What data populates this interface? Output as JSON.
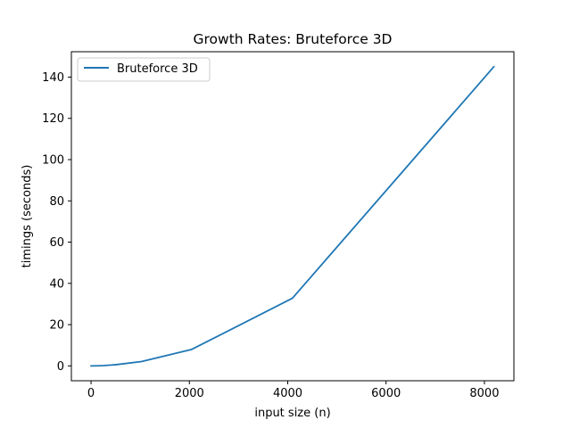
{
  "chart_data": {
    "type": "line",
    "title": "Growth Rates: Bruteforce 3D",
    "xlabel": "input size (n)",
    "ylabel": "timings (seconds)",
    "xlim": [
      -400,
      8600
    ],
    "ylim": [
      -7.2,
      152.3
    ],
    "xticks": [
      0,
      2000,
      4000,
      6000,
      8000
    ],
    "yticks": [
      0,
      20,
      40,
      60,
      80,
      100,
      120,
      140
    ],
    "grid": false,
    "legend_position": "top-left",
    "series": [
      {
        "name": "Bruteforce 3D",
        "color": "#1f77b4",
        "x": [
          0,
          128,
          256,
          512,
          1024,
          2048,
          4096,
          8192
        ],
        "y": [
          0.0,
          0.05,
          0.15,
          0.6,
          2.1,
          8.0,
          32.8,
          145.0
        ]
      }
    ]
  }
}
